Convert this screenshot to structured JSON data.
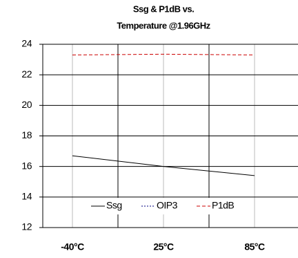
{
  "chart_data": {
    "type": "line",
    "title": [
      "Ssg & P1dB vs.",
      "Temperature @1.96GHz"
    ],
    "categories": [
      "-40°C",
      "25°C",
      "85°C"
    ],
    "series": [
      {
        "name": "Ssg",
        "color": "#000000",
        "values": [
          16.7,
          16.0,
          15.4
        ]
      },
      {
        "name": "OIP3",
        "color": "#000080",
        "values": [
          null,
          null,
          null
        ]
      },
      {
        "name": "P1dB",
        "color": "#cc0000",
        "values": [
          23.3,
          23.35,
          23.3
        ]
      }
    ],
    "ylim": [
      12,
      24
    ],
    "yticks": [
      12,
      14,
      16,
      18,
      20,
      22,
      24
    ],
    "grid": true,
    "legend": "bottom"
  }
}
